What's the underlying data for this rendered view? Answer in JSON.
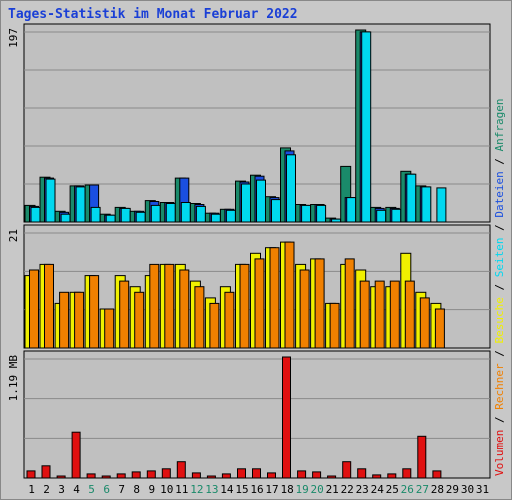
{
  "title": "Tages-Statistik im Monat Februar 2022",
  "chart_data": {
    "type": "bar",
    "title": "Tages-Statistik im Monat Februar 2022",
    "days": [
      "1",
      "2",
      "3",
      "4",
      "5",
      "6",
      "7",
      "8",
      "9",
      "10",
      "11",
      "12",
      "13",
      "14",
      "15",
      "16",
      "17",
      "18",
      "19",
      "20",
      "21",
      "22",
      "23",
      "24",
      "25",
      "26",
      "27",
      "28",
      "29",
      "30",
      "31"
    ],
    "weekend_days": [
      "5",
      "6",
      "12",
      "13",
      "19",
      "20",
      "26",
      "27"
    ],
    "panels": [
      {
        "name": "requests",
        "max_label": "197",
        "ymax": 197,
        "series": [
          {
            "name": "Anfragen",
            "color": "#1a8a6a",
            "values": [
              17,
              46,
              11,
              37,
              38,
              8,
              15,
              11,
              22,
              20,
              45,
              19,
              9,
              13,
              42,
              48,
              26,
              76,
              18,
              18,
              4,
              57,
              197,
              15,
              15,
              52,
              37,
              0,
              0,
              0,
              0
            ]
          },
          {
            "name": "Dateien",
            "color": "#1a4fe0",
            "values": [
              16,
              45,
              10,
              37,
              38,
              7,
              14,
              11,
              21,
              20,
              45,
              18,
              9,
              13,
              41,
              47,
              25,
              73,
              17,
              18,
              3,
              25,
              195,
              14,
              14,
              49,
              36,
              0,
              0,
              0,
              0
            ]
          },
          {
            "name": "Seiten",
            "color": "#00d8f0",
            "values": [
              15,
              44,
              8,
              36,
              15,
              7,
              14,
              10,
              17,
              19,
              20,
              16,
              8,
              12,
              39,
              43,
              23,
              69,
              17,
              17,
              3,
              25,
              195,
              12,
              13,
              49,
              36,
              35,
              0,
              0,
              0
            ]
          }
        ]
      },
      {
        "name": "visits",
        "max_label": "21",
        "ymax": 21,
        "series": [
          {
            "name": "Besuche",
            "color": "#f0f000",
            "values": [
              13,
              15,
              8,
              10,
              13,
              7,
              13,
              11,
              13,
              15,
              15,
              12,
              9,
              11,
              15,
              17,
              18,
              19,
              15,
              16,
              8,
              15,
              14,
              11,
              11,
              17,
              10,
              8,
              0,
              0,
              0
            ]
          },
          {
            "name": "Rechner",
            "color": "#f08000",
            "values": [
              14,
              15,
              10,
              10,
              13,
              7,
              12,
              10,
              15,
              15,
              14,
              11,
              8,
              10,
              15,
              16,
              18,
              19,
              14,
              16,
              8,
              16,
              12,
              12,
              12,
              12,
              9,
              7,
              0,
              0,
              0
            ]
          }
        ]
      },
      {
        "name": "volume",
        "max_label": "1.19 MB",
        "ymax": 1.19,
        "series": [
          {
            "name": "Volumen",
            "color": "#e01010",
            "values": [
              0.07,
              0.12,
              0.02,
              0.45,
              0.04,
              0.02,
              0.04,
              0.06,
              0.07,
              0.09,
              0.16,
              0.05,
              0.02,
              0.04,
              0.09,
              0.09,
              0.05,
              1.19,
              0.07,
              0.06,
              0.02,
              0.16,
              0.09,
              0.03,
              0.04,
              0.09,
              0.41,
              0.07,
              0,
              0,
              0
            ]
          }
        ]
      }
    ],
    "legend_order": [
      "Volumen",
      "Rechner",
      "Besuche",
      "Seiten",
      "Dateien",
      "Anfragen"
    ],
    "legend_separator": "/",
    "grid": true
  },
  "colors": {
    "panel_bg": "#c0c0c0",
    "frame_bg": "#c8c8c8",
    "title": "#1a3fd6",
    "weekday_label": "#000000",
    "weekend_label": "#1a8a6a"
  }
}
